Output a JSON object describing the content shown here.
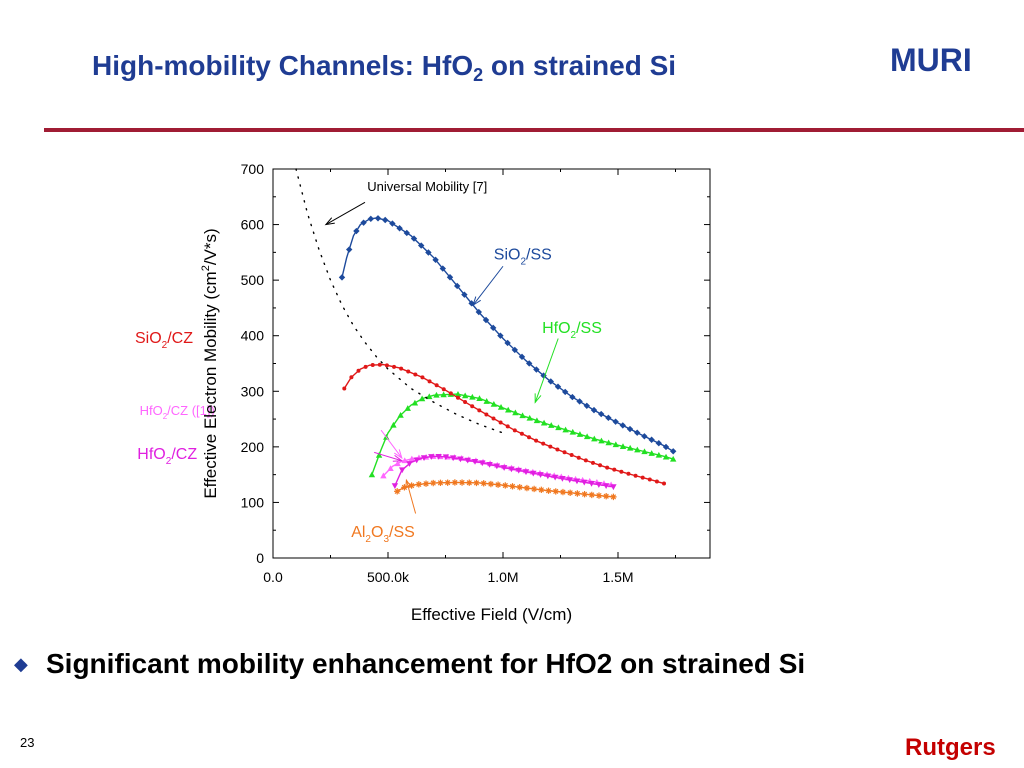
{
  "slide": {
    "title_main": "High-mobility Channels: HfO",
    "title_sub": "2",
    "title_rest": " on strained Si",
    "brand": "MURI",
    "bullet_icon": "diamond-icon",
    "bullet": "Significant mobility enhancement for HfO2 on strained Si",
    "slide_number": "23",
    "footer_brand": "Rutgers"
  },
  "colors": {
    "title": "#1f3c93",
    "rule": "#a01c34",
    "footer": "#c40000",
    "sio2_ss": "#1d4a9c",
    "hfo2_ss": "#22e022",
    "sio2_cz": "#e01818",
    "hfo2_cz_ref": "#ff66ff",
    "hfo2_cz": "#e020e0",
    "al2o3_ss": "#f07820"
  },
  "chart_data": {
    "type": "line",
    "xlabel": "Effective Field (V/cm)",
    "ylabel_parts": [
      "Effective Electron Mobility (cm",
      "2",
      "/V*s)"
    ],
    "xlim": [
      0,
      1900000
    ],
    "ylim": [
      0,
      700
    ],
    "xticks": [
      0,
      500000,
      1000000,
      1500000
    ],
    "xtick_labels": [
      "0.0",
      "500.0k",
      "1.0M",
      "1.5M"
    ],
    "yticks": [
      0,
      100,
      200,
      300,
      400,
      500,
      600,
      700
    ],
    "ytick_labels": [
      "0",
      "100",
      "200",
      "300",
      "400",
      "500",
      "600",
      "700"
    ],
    "grid": false,
    "legend": "none",
    "series": [
      {
        "name": "SiO2/SS",
        "label": [
          "SiO",
          "2",
          "/SS"
        ],
        "colorKey": "sio2_ss",
        "marker": "diamond",
        "x": [
          300000,
          320000,
          350000,
          380000,
          420000,
          450000,
          500000,
          600000,
          700000,
          800000,
          900000,
          1000000,
          1100000,
          1200000,
          1300000,
          1400000,
          1500000,
          1600000,
          1700000,
          1740000
        ],
        "y": [
          505,
          540,
          580,
          600,
          610,
          612,
          607,
          580,
          540,
          490,
          440,
          395,
          355,
          320,
          290,
          265,
          243,
          222,
          202,
          192
        ]
      },
      {
        "name": "HfO2/SS",
        "label": [
          "HfO",
          "2",
          "/SS"
        ],
        "colorKey": "hfo2_ss",
        "marker": "triangle-up",
        "x": [
          430000,
          470000,
          500000,
          550000,
          600000,
          650000,
          700000,
          800000,
          900000,
          1000000,
          1100000,
          1200000,
          1300000,
          1400000,
          1500000,
          1600000,
          1700000,
          1740000
        ],
        "y": [
          150,
          195,
          225,
          255,
          275,
          287,
          293,
          295,
          287,
          270,
          254,
          240,
          227,
          214,
          203,
          193,
          183,
          178
        ]
      },
      {
        "name": "SiO2/CZ",
        "label": [
          "SiO",
          "2",
          "/CZ"
        ],
        "colorKey": "sio2_cz",
        "marker": "dot",
        "x": [
          310000,
          340000,
          380000,
          420000,
          480000,
          550000,
          650000,
          750000,
          850000,
          950000,
          1050000,
          1150000,
          1250000,
          1350000,
          1450000,
          1550000,
          1650000,
          1700000
        ],
        "y": [
          305,
          325,
          340,
          347,
          348,
          342,
          325,
          302,
          277,
          253,
          230,
          210,
          193,
          177,
          163,
          151,
          140,
          134
        ]
      },
      {
        "name": "HfO2/CZ ([1])",
        "label": [
          "HfO",
          "2",
          "/CZ ([1])"
        ],
        "colorKey": "hfo2_cz_ref",
        "marker": "triangle-up",
        "x": [
          480000,
          520000,
          560000,
          620000,
          700000,
          800000,
          900000,
          1000000,
          1100000,
          1200000,
          1300000,
          1400000,
          1470000
        ],
        "y": [
          148,
          165,
          174,
          180,
          183,
          181,
          174,
          165,
          157,
          150,
          143,
          137,
          132
        ]
      },
      {
        "name": "HfO2/CZ",
        "label": [
          "HfO",
          "2",
          "/CZ"
        ],
        "colorKey": "hfo2_cz",
        "marker": "triangle-down",
        "x": [
          530000,
          560000,
          600000,
          650000,
          700000,
          750000,
          800000,
          900000,
          1000000,
          1100000,
          1200000,
          1300000,
          1400000,
          1480000
        ],
        "y": [
          130,
          158,
          172,
          180,
          183,
          182,
          179,
          172,
          163,
          155,
          147,
          140,
          133,
          128
        ]
      },
      {
        "name": "Al2O3/SS",
        "label": [
          "Al",
          "2",
          "O",
          "3",
          "/SS"
        ],
        "colorKey": "al2o3_ss",
        "marker": "star",
        "x": [
          540000,
          570000,
          620000,
          700000,
          800000,
          900000,
          1000000,
          1100000,
          1200000,
          1300000,
          1400000,
          1480000
        ],
        "y": [
          120,
          127,
          132,
          135,
          136,
          135,
          131,
          126,
          121,
          117,
          113,
          110
        ]
      },
      {
        "name": "Universal Mobility [7]",
        "label": [
          "Universal Mobility [7]"
        ],
        "colorKey": "none",
        "marker": "dotted-line",
        "x": [
          100000,
          150000,
          200000,
          250000,
          300000,
          350000,
          400000,
          450000,
          500000,
          600000,
          700000,
          800000,
          900000,
          1000000
        ],
        "y": [
          700,
          620,
          555,
          500,
          455,
          418,
          388,
          362,
          340,
          305,
          280,
          258,
          240,
          225
        ]
      }
    ],
    "annotations": [
      {
        "series": "Universal Mobility [7]",
        "textParts": [
          "Universal Mobility [7]"
        ],
        "colorKey": "black",
        "fontSize": 13,
        "textAt": [
          410000,
          660
        ],
        "arrowFrom": [
          400000,
          640
        ],
        "arrowTo": [
          230000,
          600
        ]
      },
      {
        "series": "SiO2/SS",
        "textParts": [
          "SiO",
          "2",
          "/SS"
        ],
        "colorKey": "sio2_ss",
        "fontSize": 16,
        "textAt": [
          960000,
          537
        ],
        "arrowFrom": [
          1000000,
          525
        ],
        "arrowTo": [
          870000,
          455
        ]
      },
      {
        "series": "HfO2/SS",
        "textParts": [
          "HfO",
          "2",
          "/SS"
        ],
        "colorKey": "hfo2_ss",
        "fontSize": 16,
        "textAt": [
          1170000,
          405
        ],
        "arrowFrom": [
          1240000,
          395
        ],
        "arrowTo": [
          1140000,
          280
        ]
      },
      {
        "series": "SiO2/CZ",
        "textParts": [
          "SiO",
          "2",
          "/CZ"
        ],
        "colorKey": "sio2_cz",
        "fontSize": 16,
        "textAt": [
          -600000,
          387
        ],
        "arrowFrom": null,
        "arrowTo": null
      },
      {
        "series": "HfO2/CZ ([1])",
        "textParts": [
          "HfO",
          "2",
          "/CZ ([1])"
        ],
        "colorKey": "hfo2_cz_ref",
        "fontSize": 13,
        "textAt": [
          -580000,
          257
        ],
        "arrowFrom": [
          470000,
          230
        ],
        "arrowTo": [
          560000,
          180
        ]
      },
      {
        "series": "HfO2/CZ",
        "textParts": [
          "HfO",
          "2",
          "/CZ"
        ],
        "colorKey": "hfo2_cz",
        "fontSize": 16,
        "textAt": [
          -590000,
          178
        ],
        "arrowFrom": [
          440000,
          190
        ],
        "arrowTo": [
          560000,
          175
        ]
      },
      {
        "series": "Al2O3/SS",
        "textParts": [
          "Al",
          "2",
          "O",
          "3",
          "/SS"
        ],
        "colorKey": "al2o3_ss",
        "fontSize": 16,
        "textAt": [
          340000,
          38
        ],
        "arrowFrom": [
          620000,
          80
        ],
        "arrowTo": [
          580000,
          140
        ]
      }
    ]
  }
}
